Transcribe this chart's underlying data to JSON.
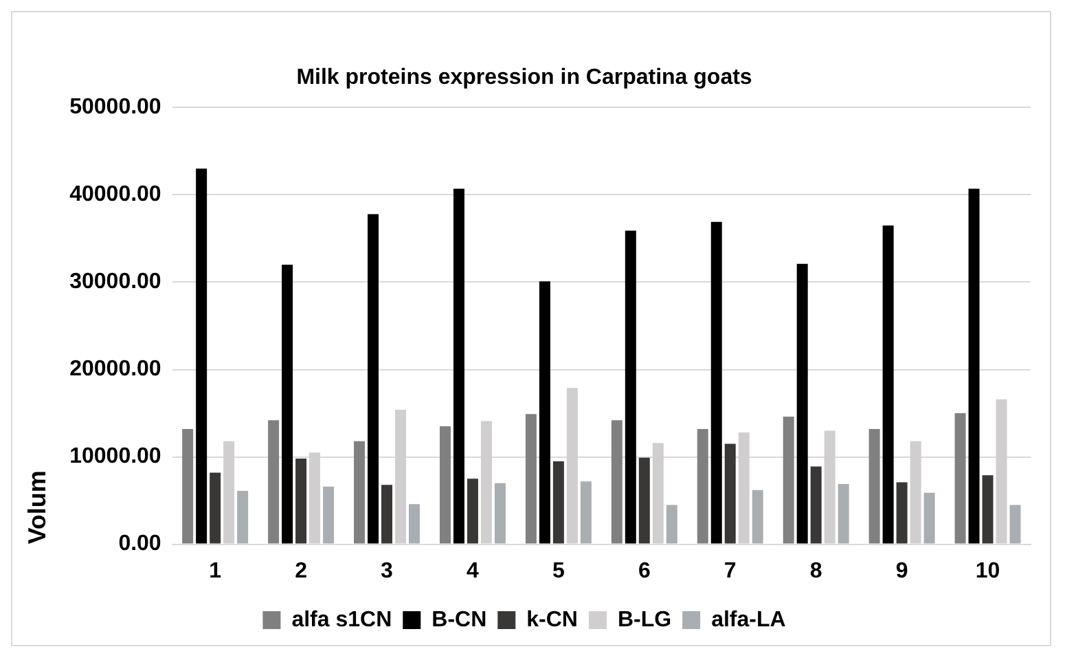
{
  "chart_data": {
    "type": "bar",
    "title": "Milk proteins expression in Carpatina goats",
    "ylabel": "Volum",
    "categories": [
      "1",
      "2",
      "3",
      "4",
      "5",
      "6",
      "7",
      "8",
      "9",
      "10"
    ],
    "series": [
      {
        "name": "alfa s1CN",
        "color": "#808080",
        "values": [
          13200,
          14200,
          11800,
          13500,
          14900,
          14200,
          13200,
          14600,
          13200,
          15000
        ]
      },
      {
        "name": "B-CN",
        "color": "#000000",
        "values": [
          43000,
          32000,
          37800,
          40700,
          30100,
          35900,
          36900,
          32100,
          36500,
          40700
        ]
      },
      {
        "name": "k-CN",
        "color": "#3a3836",
        "values": [
          8200,
          9800,
          6800,
          7500,
          9500,
          9900,
          11500,
          8900,
          7100,
          7900
        ]
      },
      {
        "name": "B-LG",
        "color": "#d0cece",
        "values": [
          11800,
          10500,
          15400,
          14100,
          17900,
          11600,
          12800,
          13000,
          11800,
          16600
        ]
      },
      {
        "name": "alfa-LA",
        "color": "#a9aeb3",
        "values": [
          6100,
          6600,
          4600,
          7000,
          7200,
          4500,
          6200,
          6900,
          5900,
          4500
        ]
      }
    ],
    "ylim": [
      0,
      50000
    ],
    "yticks": [
      {
        "value": 0,
        "label": "0.00"
      },
      {
        "value": 10000,
        "label": "10000.00"
      },
      {
        "value": 20000,
        "label": "20000.00"
      },
      {
        "value": 30000,
        "label": "30000.00"
      },
      {
        "value": 40000,
        "label": "40000.00"
      },
      {
        "value": 50000,
        "label": "50000.00"
      }
    ],
    "grid": "y",
    "legend": "bottom"
  }
}
